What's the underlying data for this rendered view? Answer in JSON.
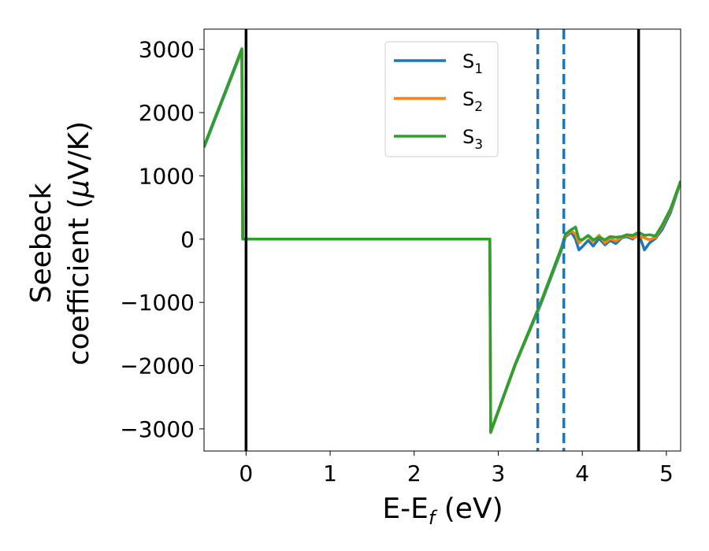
{
  "chart_data": {
    "type": "line",
    "title": "",
    "xlabel": "E-E",
    "xlabel_sub": "f",
    "xlabel_unit": " (eV)",
    "ylabel_line1": "Seebeck",
    "ylabel_line2_a": "coefficient  (",
    "ylabel_mu": "μ",
    "ylabel_line2_b": "V/K)",
    "xlim": [
      -0.5,
      5.17
    ],
    "ylim": [
      -3350,
      3320
    ],
    "xticks": [
      0,
      1,
      2,
      3,
      4,
      5
    ],
    "xtick_labels": [
      "0",
      "1",
      "2",
      "3",
      "4",
      "5"
    ],
    "yticks": [
      3000,
      2000,
      1000,
      0,
      -1000,
      -2000,
      -3000
    ],
    "ytick_labels": [
      "3000",
      "2000",
      "1000",
      "0",
      "−1000",
      "−2000",
      "−3000"
    ],
    "grid": false,
    "legend_position": "top-center",
    "vlines_solid": [
      0.0,
      4.67
    ],
    "vlines_dashed": [
      3.47,
      3.78
    ],
    "series": [
      {
        "name": "S",
        "sub": "1",
        "color": "#1f77b4",
        "x": [
          -0.5,
          -0.05,
          -0.04,
          2.9,
          2.91,
          3.2,
          3.5,
          3.75,
          3.8,
          3.87,
          3.92,
          3.96,
          4.0,
          4.07,
          4.13,
          4.2,
          4.27,
          4.33,
          4.4,
          4.47,
          4.53,
          4.6,
          4.67,
          4.74,
          4.8,
          4.87,
          4.95,
          5.05,
          5.17
        ],
        "y": [
          1450,
          2980,
          0,
          0,
          -3060,
          -2000,
          -1050,
          -180,
          40,
          110,
          0,
          -170,
          -120,
          -20,
          -110,
          10,
          -90,
          -20,
          -70,
          20,
          40,
          0,
          90,
          -170,
          -60,
          10,
          150,
          420,
          900
        ]
      },
      {
        "name": "S",
        "sub": "2",
        "color": "#ff7f0e",
        "x": [
          -0.5,
          -0.05,
          -0.04,
          2.9,
          2.91,
          3.2,
          3.5,
          3.75,
          3.8,
          3.87,
          3.92,
          3.96,
          4.0,
          4.07,
          4.13,
          4.2,
          4.27,
          4.33,
          4.4,
          4.47,
          4.53,
          4.6,
          4.67,
          4.74,
          4.8,
          4.87,
          4.95,
          5.05,
          5.17
        ],
        "y": [
          1470,
          3000,
          0,
          0,
          -3050,
          -1990,
          -1030,
          -150,
          60,
          130,
          80,
          -60,
          -10,
          50,
          -40,
          60,
          -60,
          10,
          -30,
          30,
          60,
          20,
          50,
          20,
          -10,
          30,
          200,
          460,
          910
        ]
      },
      {
        "name": "S",
        "sub": "3",
        "color": "#2ca02c",
        "x": [
          -0.5,
          -0.05,
          -0.04,
          2.9,
          2.91,
          3.2,
          3.5,
          3.75,
          3.8,
          3.87,
          3.92,
          3.96,
          4.0,
          4.07,
          4.13,
          4.2,
          4.27,
          4.33,
          4.4,
          4.47,
          4.53,
          4.6,
          4.67,
          4.74,
          4.8,
          4.87,
          4.95,
          5.05,
          5.17
        ],
        "y": [
          1470,
          3010,
          0,
          0,
          -3040,
          -1980,
          -1020,
          -140,
          80,
          150,
          190,
          0,
          -10,
          60,
          -10,
          30,
          -10,
          40,
          30,
          40,
          70,
          60,
          110,
          60,
          70,
          50,
          220,
          480,
          920
        ]
      }
    ]
  }
}
